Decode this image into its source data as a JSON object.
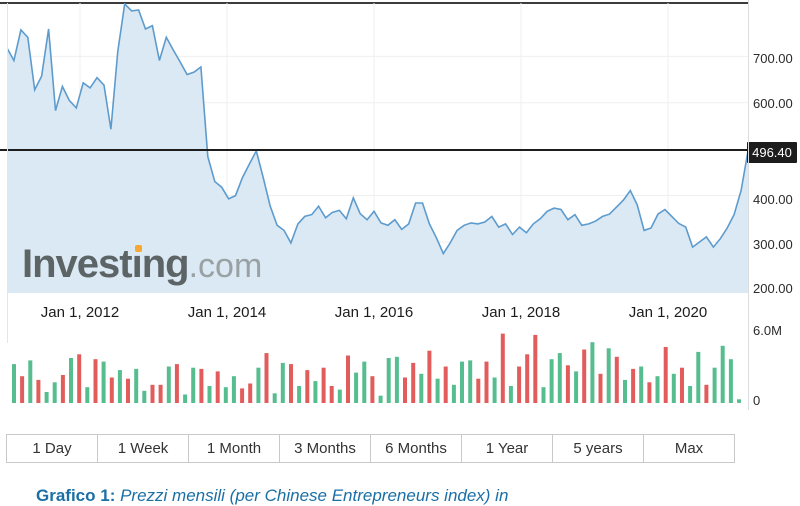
{
  "watermark": {
    "brand_main": "Invest",
    "brand_i": "ı",
    "brand_tail": "ng",
    "suffix": ".com"
  },
  "price_badge": "496.40",
  "chart_data": [
    {
      "type": "area",
      "title": "Price history (monthly close)",
      "x_tick_labels": [
        "Jan 1, 2012",
        "Jan 1, 2014",
        "Jan 1, 2016",
        "Jan 1, 2018",
        "Jan 1, 2020"
      ],
      "x_range": [
        "Jan 2011",
        "Dec 2020"
      ],
      "y_tick_labels": [
        "700.00",
        "600.00",
        "400.00",
        "300.00",
        "200.00"
      ],
      "y_ticks": [
        700,
        600,
        400,
        300,
        200
      ],
      "ylim": [
        190,
        815
      ],
      "current_price": 496.4,
      "grid": true,
      "line_color": "#5e9bcd",
      "fill_color": "#dae9f4",
      "marker_line_color": "#1d1d1d",
      "values": [
        718,
        691,
        757,
        741,
        628,
        657,
        759,
        583,
        635,
        605,
        589,
        643,
        632,
        654,
        638,
        543,
        711,
        813,
        798,
        800,
        759,
        766,
        691,
        741,
        714,
        688,
        661,
        666,
        677,
        484,
        430,
        418,
        393,
        400,
        439,
        468,
        496,
        439,
        377,
        336,
        325,
        298,
        339,
        355,
        359,
        377,
        352,
        364,
        368,
        350,
        395,
        361,
        348,
        366,
        341,
        336,
        348,
        327,
        339,
        384,
        384,
        339,
        309,
        275,
        298,
        325,
        336,
        341,
        339,
        343,
        355,
        332,
        339,
        316,
        332,
        320,
        339,
        350,
        366,
        373,
        370,
        348,
        359,
        336,
        339,
        345,
        355,
        360,
        375,
        390,
        411,
        380,
        325,
        330,
        360,
        370,
        355,
        340,
        332,
        289,
        300,
        311,
        289,
        307,
        330,
        359,
        411,
        496
      ]
    },
    {
      "type": "bar",
      "title": "Volume",
      "y_tick_labels": [
        "6.0M",
        "0"
      ],
      "ylim_millions": [
        0,
        6.0
      ],
      "up_color": "#56bd8f",
      "down_color": "#e25c5c",
      "values_millions": [
        3.2,
        2.2,
        3.5,
        1.9,
        0.9,
        1.7,
        2.3,
        3.7,
        4.0,
        1.3,
        3.6,
        3.4,
        2.1,
        2.7,
        2.0,
        2.8,
        1.0,
        1.5,
        1.5,
        3.0,
        3.2,
        0.7,
        2.9,
        2.8,
        1.4,
        2.6,
        1.3,
        2.2,
        1.2,
        1.6,
        2.9,
        4.1,
        0.8,
        3.3,
        3.2,
        1.4,
        2.7,
        1.8,
        2.9,
        1.4,
        1.1,
        3.9,
        2.5,
        3.4,
        2.2,
        0.6,
        3.7,
        3.8,
        2.1,
        3.3,
        2.4,
        4.3,
        2.0,
        3.0,
        1.5,
        3.4,
        3.5,
        2.0,
        3.4,
        2.1,
        5.7,
        1.4,
        3.0,
        4.0,
        5.6,
        1.3,
        3.6,
        4.1,
        3.1,
        2.6,
        4.4,
        5.0,
        2.4,
        4.5,
        3.8,
        1.9,
        2.8,
        3.0,
        1.7,
        2.2,
        4.6,
        2.4,
        2.9,
        1.4,
        4.2,
        1.5,
        2.9,
        4.7,
        3.6,
        0.3
      ],
      "colors": [
        "g",
        "r",
        "g",
        "r",
        "g",
        "g",
        "r",
        "g",
        "r",
        "g",
        "r",
        "g",
        "r",
        "g",
        "r",
        "g",
        "g",
        "r",
        "r",
        "g",
        "r",
        "g",
        "g",
        "r",
        "g",
        "r",
        "g",
        "g",
        "r",
        "r",
        "g",
        "r",
        "g",
        "g",
        "r",
        "g",
        "r",
        "g",
        "r",
        "r",
        "g",
        "r",
        "g",
        "g",
        "r",
        "g",
        "g",
        "g",
        "r",
        "r",
        "g",
        "r",
        "g",
        "r",
        "g",
        "g",
        "g",
        "r",
        "r",
        "g",
        "r",
        "g",
        "r",
        "r",
        "r",
        "g",
        "g",
        "g",
        "r",
        "g",
        "r",
        "g",
        "r",
        "g",
        "r",
        "g",
        "r",
        "g",
        "r",
        "g",
        "r",
        "g",
        "r",
        "g",
        "g",
        "r",
        "g",
        "g",
        "g",
        "g"
      ]
    }
  ],
  "range_buttons": [
    "1 Day",
    "1 Week",
    "1 Month",
    "3 Months",
    "6 Months",
    "1 Year",
    "5 years",
    "Max"
  ],
  "caption": {
    "label": "Grafico 1:",
    "text": " Prezzi mensili (per Chinese Entrepreneurs index) in"
  }
}
